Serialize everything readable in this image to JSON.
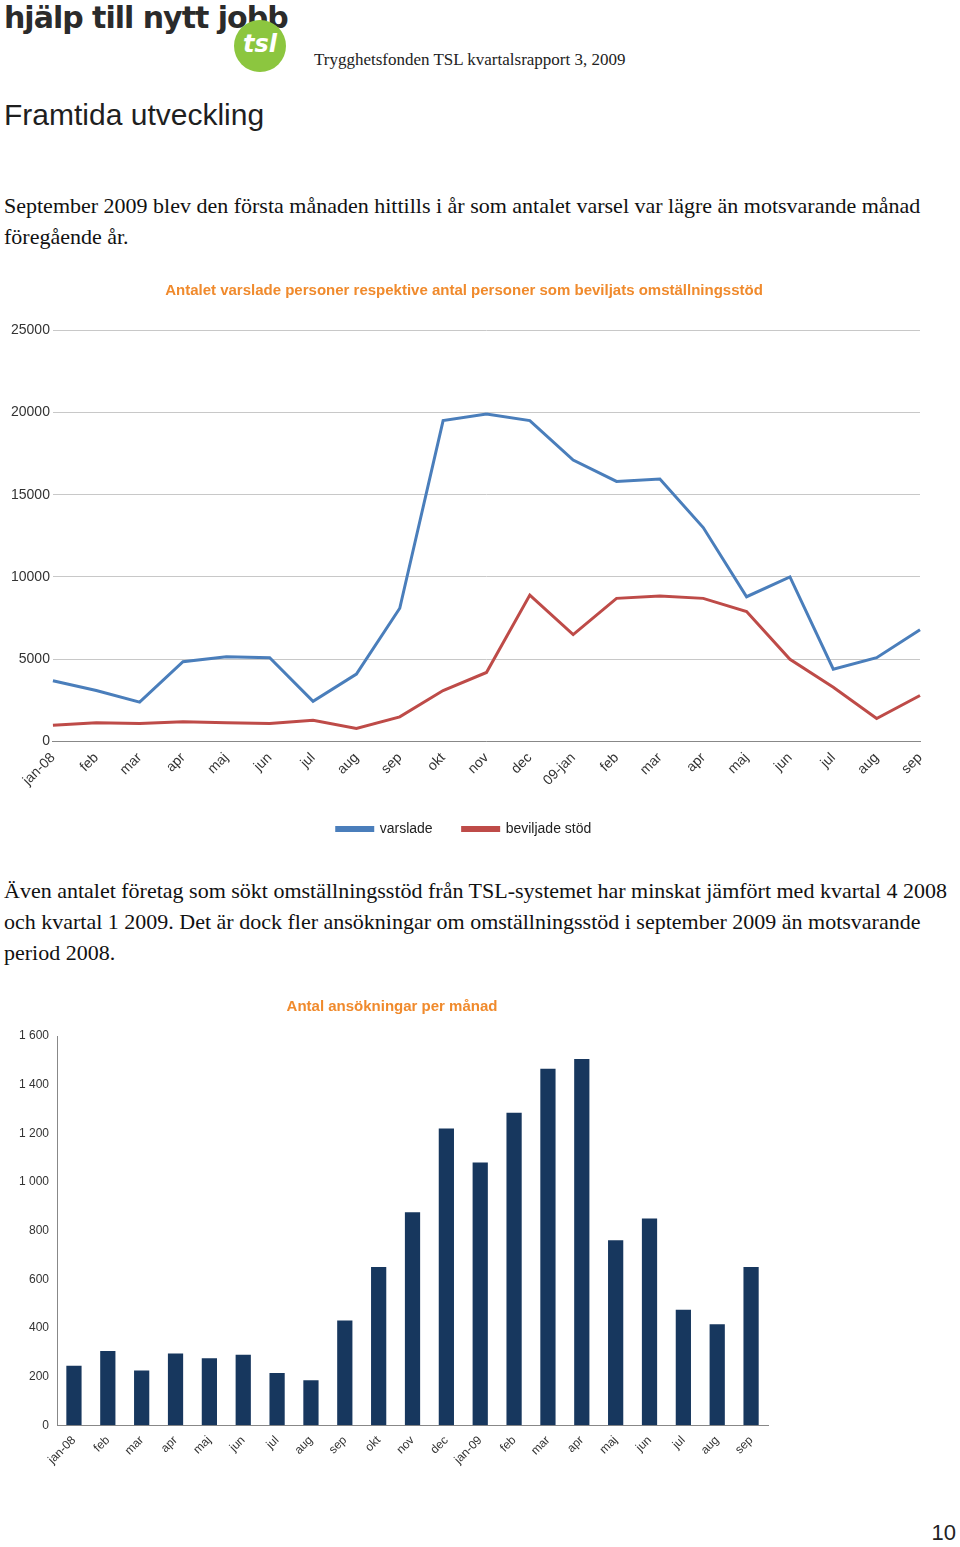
{
  "document": {
    "logo": "hjälp till nytt jobb",
    "logo_badge": "tsl",
    "header": "Trygghetsfonden TSL kvartalsrapport 3, 2009",
    "heading": "Framtida utveckling",
    "paragraphs": [
      "September 2009 blev den första månaden hittills i år som antalet varsel var lägre än motsvarande månad föregående år.",
      "Även antalet företag som sökt omställningsstöd från TSL-systemet har minskat jämfört med kvartal 4 2008 och kvartal 1 2009. Det är dock fler ansökningar om omställningsstöd i september 2009 än motsvarande period 2008."
    ],
    "page_number": "10"
  },
  "chart_data": [
    {
      "type": "line",
      "title": "Antalet varslade personer respektive antal personer som beviljats omställningsstöd",
      "categories": [
        "jan-08",
        "feb",
        "mar",
        "apr",
        "maj",
        "jun",
        "jul",
        "aug",
        "sep",
        "okt",
        "nov",
        "dec",
        "09-jan",
        "feb",
        "mar",
        "apr",
        "maj",
        "jun",
        "jul",
        "aug",
        "sep"
      ],
      "series": [
        {
          "name": "varslade",
          "color": "#4a7ebb",
          "values": [
            3700,
            3100,
            2400,
            4850,
            5150,
            5100,
            2450,
            4100,
            8100,
            19500,
            19900,
            19500,
            17100,
            15800,
            15950,
            13000,
            8800,
            10000,
            4400,
            5100,
            6800
          ]
        },
        {
          "name": "beviljade stöd",
          "color": "#be4b48",
          "values": [
            1000,
            1150,
            1100,
            1200,
            1150,
            1100,
            1300,
            800,
            1500,
            3100,
            4200,
            8900,
            6500,
            8700,
            8850,
            8700,
            7900,
            5000,
            3300,
            1400,
            2800
          ]
        }
      ],
      "ylim": [
        0,
        25000
      ],
      "yticks": [
        0,
        5000,
        10000,
        15000,
        20000,
        25000
      ],
      "grid": true,
      "legend": "bottom",
      "marker": "none"
    },
    {
      "type": "bar",
      "title": "Antal ansökningar per månad",
      "categories": [
        "jan-08",
        "feb",
        "mar",
        "apr",
        "maj",
        "jun",
        "jul",
        "aug",
        "sep",
        "okt",
        "nov",
        "dec",
        "jan-09",
        "feb",
        "mar",
        "apr",
        "maj",
        "jun",
        "jul",
        "aug",
        "sep"
      ],
      "values": [
        245,
        305,
        225,
        295,
        275,
        290,
        215,
        185,
        430,
        650,
        875,
        1220,
        1080,
        1285,
        1465,
        1505,
        760,
        850,
        475,
        415,
        650
      ],
      "color": "#17375e",
      "ylim": [
        0,
        1600
      ],
      "yticks": [
        0,
        200,
        400,
        600,
        800,
        {
          "value": 1000,
          "label": "1 000"
        },
        {
          "value": 1200,
          "label": "1 200"
        },
        {
          "value": 1400,
          "label": "1 400"
        },
        {
          "value": 1600,
          "label": "1 600"
        }
      ],
      "grid": false
    }
  ]
}
